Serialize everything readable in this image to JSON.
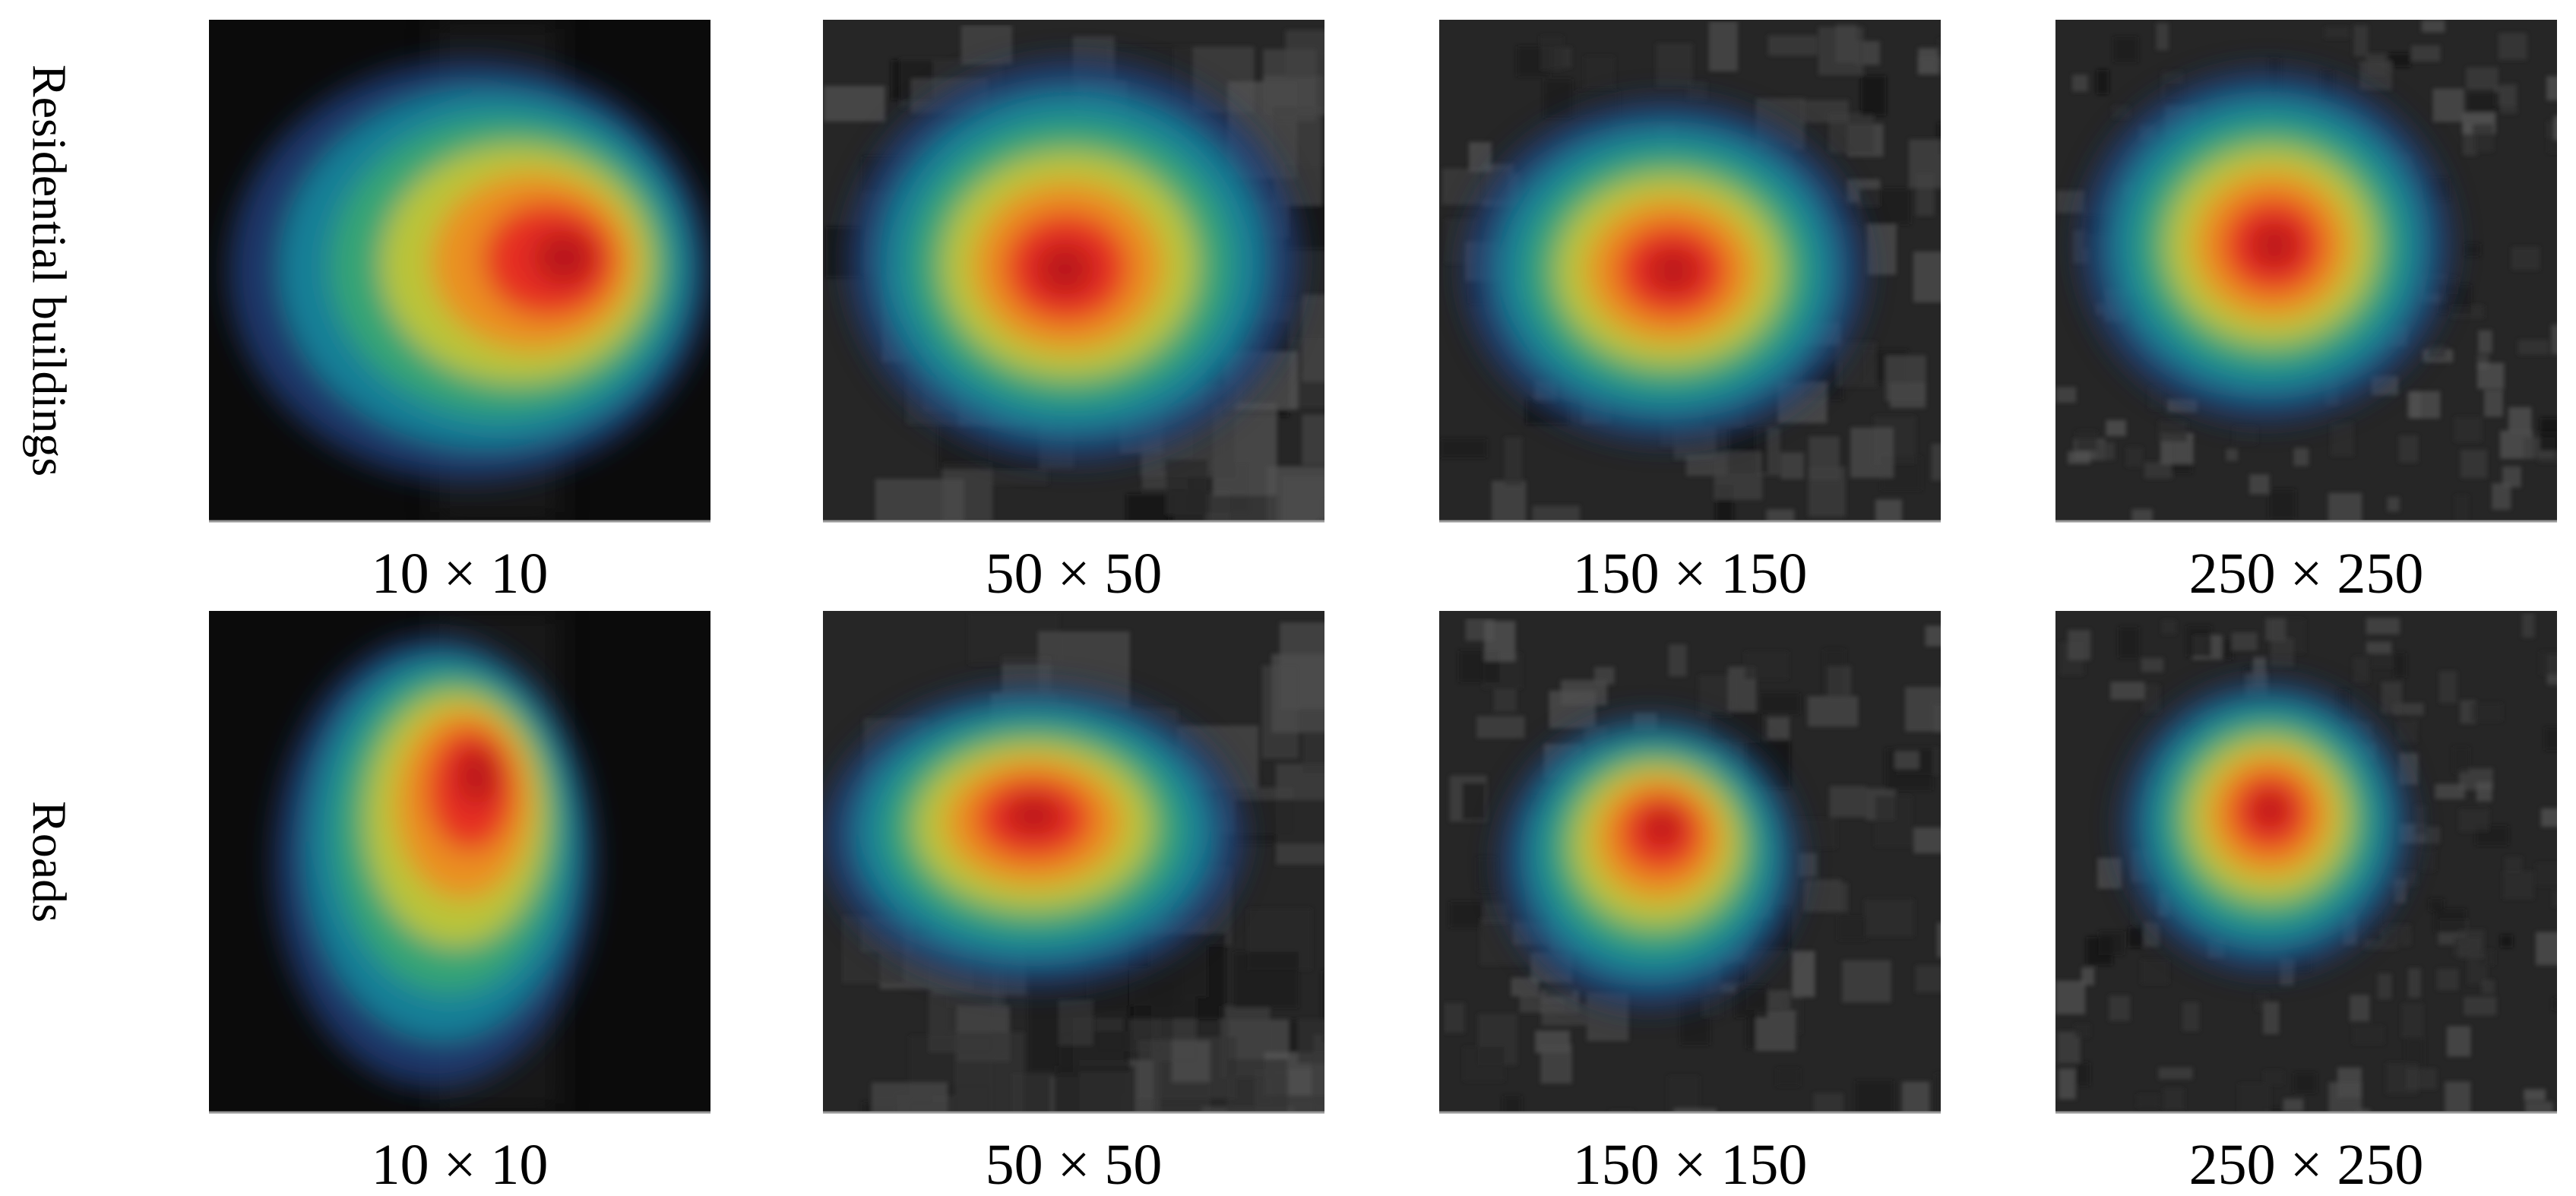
{
  "rows": [
    {
      "label": "Residential buildings",
      "captions": [
        "10 × 10",
        "50 × 50",
        "150 × 150",
        "250 × 250"
      ]
    },
    {
      "label": "Roads",
      "captions": [
        "10 × 10",
        "50 × 50",
        "150 × 150",
        "250 × 250"
      ]
    }
  ]
}
